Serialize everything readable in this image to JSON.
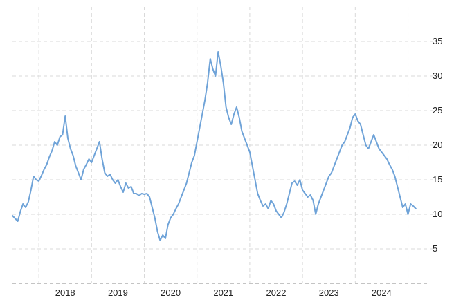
{
  "chart_data": {
    "type": "line",
    "title": "",
    "xlabel": "",
    "ylabel": "",
    "y_axis_side": "right",
    "ylim": [
      0,
      40
    ],
    "xlim": [
      2017.0,
      2024.9
    ],
    "grid": true,
    "legend": "none",
    "y_ticks": [
      {
        "value": 5,
        "label": "5"
      },
      {
        "value": 10,
        "label": "10"
      },
      {
        "value": 15,
        "label": "15"
      },
      {
        "value": 20,
        "label": "20"
      },
      {
        "value": 25,
        "label": "25"
      },
      {
        "value": 30,
        "label": "30"
      },
      {
        "value": 35,
        "label": "35"
      }
    ],
    "x_ticks": [
      {
        "label": "2018",
        "center": 2018.0
      },
      {
        "label": "2019",
        "center": 2019.0
      },
      {
        "label": "2020",
        "center": 2020.0
      },
      {
        "label": "2021",
        "center": 2021.0
      },
      {
        "label": "2022",
        "center": 2022.0
      },
      {
        "label": "2023",
        "center": 2023.0
      },
      {
        "label": "2024",
        "center": 2024.0
      }
    ],
    "x_gridlines": [
      2017.5,
      2018.5,
      2019.5,
      2020.5,
      2021.5,
      2022.5,
      2023.5,
      2024.5
    ],
    "series": [
      {
        "color": "#6fa3d8",
        "points": [
          [
            2017.0,
            9.8
          ],
          [
            2017.05,
            9.4
          ],
          [
            2017.1,
            9.0
          ],
          [
            2017.15,
            10.4
          ],
          [
            2017.2,
            11.5
          ],
          [
            2017.25,
            11.0
          ],
          [
            2017.3,
            11.8
          ],
          [
            2017.35,
            13.5
          ],
          [
            2017.4,
            15.5
          ],
          [
            2017.45,
            15.0
          ],
          [
            2017.5,
            14.8
          ],
          [
            2017.55,
            15.6
          ],
          [
            2017.6,
            16.5
          ],
          [
            2017.65,
            17.2
          ],
          [
            2017.7,
            18.3
          ],
          [
            2017.75,
            19.2
          ],
          [
            2017.8,
            20.5
          ],
          [
            2017.85,
            20.0
          ],
          [
            2017.9,
            21.2
          ],
          [
            2017.95,
            21.5
          ],
          [
            2018.0,
            24.2
          ],
          [
            2018.05,
            21.0
          ],
          [
            2018.1,
            19.5
          ],
          [
            2018.15,
            18.5
          ],
          [
            2018.2,
            17.0
          ],
          [
            2018.25,
            16.0
          ],
          [
            2018.3,
            15.0
          ],
          [
            2018.35,
            16.5
          ],
          [
            2018.4,
            17.2
          ],
          [
            2018.45,
            18.0
          ],
          [
            2018.5,
            17.5
          ],
          [
            2018.55,
            18.5
          ],
          [
            2018.6,
            19.5
          ],
          [
            2018.65,
            20.5
          ],
          [
            2018.7,
            18.0
          ],
          [
            2018.75,
            16.0
          ],
          [
            2018.8,
            15.5
          ],
          [
            2018.85,
            15.8
          ],
          [
            2018.9,
            15.0
          ],
          [
            2018.95,
            14.5
          ],
          [
            2019.0,
            15.0
          ],
          [
            2019.05,
            14.0
          ],
          [
            2019.1,
            13.2
          ],
          [
            2019.15,
            14.5
          ],
          [
            2019.2,
            13.8
          ],
          [
            2019.25,
            14.0
          ],
          [
            2019.3,
            13.0
          ],
          [
            2019.35,
            13.0
          ],
          [
            2019.4,
            12.7
          ],
          [
            2019.45,
            13.0
          ],
          [
            2019.5,
            12.9
          ],
          [
            2019.55,
            13.0
          ],
          [
            2019.6,
            12.5
          ],
          [
            2019.65,
            11.0
          ],
          [
            2019.7,
            9.5
          ],
          [
            2019.75,
            7.5
          ],
          [
            2019.8,
            6.2
          ],
          [
            2019.85,
            7.0
          ],
          [
            2019.9,
            6.5
          ],
          [
            2019.95,
            8.5
          ],
          [
            2020.0,
            9.5
          ],
          [
            2020.05,
            10.0
          ],
          [
            2020.1,
            10.8
          ],
          [
            2020.15,
            11.5
          ],
          [
            2020.2,
            12.5
          ],
          [
            2020.25,
            13.5
          ],
          [
            2020.3,
            14.5
          ],
          [
            2020.35,
            16.0
          ],
          [
            2020.4,
            17.5
          ],
          [
            2020.45,
            18.5
          ],
          [
            2020.5,
            20.5
          ],
          [
            2020.55,
            22.5
          ],
          [
            2020.6,
            24.5
          ],
          [
            2020.65,
            26.5
          ],
          [
            2020.7,
            29.0
          ],
          [
            2020.75,
            32.5
          ],
          [
            2020.8,
            31.0
          ],
          [
            2020.85,
            30.0
          ],
          [
            2020.9,
            33.5
          ],
          [
            2020.95,
            31.5
          ],
          [
            2021.0,
            29.0
          ],
          [
            2021.05,
            25.5
          ],
          [
            2021.1,
            24.0
          ],
          [
            2021.15,
            23.0
          ],
          [
            2021.2,
            24.5
          ],
          [
            2021.25,
            25.5
          ],
          [
            2021.3,
            24.0
          ],
          [
            2021.35,
            22.0
          ],
          [
            2021.4,
            21.0
          ],
          [
            2021.45,
            20.0
          ],
          [
            2021.5,
            19.0
          ],
          [
            2021.55,
            17.0
          ],
          [
            2021.6,
            15.0
          ],
          [
            2021.65,
            13.0
          ],
          [
            2021.7,
            12.0
          ],
          [
            2021.75,
            11.2
          ],
          [
            2021.8,
            11.5
          ],
          [
            2021.85,
            10.8
          ],
          [
            2021.9,
            12.0
          ],
          [
            2021.95,
            11.5
          ],
          [
            2022.0,
            10.5
          ],
          [
            2022.05,
            10.0
          ],
          [
            2022.1,
            9.5
          ],
          [
            2022.15,
            10.3
          ],
          [
            2022.2,
            11.5
          ],
          [
            2022.25,
            13.0
          ],
          [
            2022.3,
            14.5
          ],
          [
            2022.35,
            14.8
          ],
          [
            2022.4,
            14.2
          ],
          [
            2022.45,
            15.0
          ],
          [
            2022.5,
            13.5
          ],
          [
            2022.55,
            13.0
          ],
          [
            2022.6,
            12.5
          ],
          [
            2022.65,
            12.8
          ],
          [
            2022.7,
            12.0
          ],
          [
            2022.75,
            10.0
          ],
          [
            2022.8,
            11.5
          ],
          [
            2022.85,
            12.5
          ],
          [
            2022.9,
            13.5
          ],
          [
            2022.95,
            14.5
          ],
          [
            2023.0,
            15.5
          ],
          [
            2023.05,
            16.0
          ],
          [
            2023.1,
            17.0
          ],
          [
            2023.15,
            18.0
          ],
          [
            2023.2,
            19.0
          ],
          [
            2023.25,
            20.0
          ],
          [
            2023.3,
            20.5
          ],
          [
            2023.35,
            21.5
          ],
          [
            2023.4,
            22.5
          ],
          [
            2023.45,
            24.0
          ],
          [
            2023.5,
            24.5
          ],
          [
            2023.55,
            23.5
          ],
          [
            2023.6,
            23.0
          ],
          [
            2023.65,
            21.5
          ],
          [
            2023.7,
            20.0
          ],
          [
            2023.75,
            19.5
          ],
          [
            2023.8,
            20.5
          ],
          [
            2023.85,
            21.5
          ],
          [
            2023.9,
            20.5
          ],
          [
            2023.95,
            19.5
          ],
          [
            2024.0,
            19.0
          ],
          [
            2024.05,
            18.5
          ],
          [
            2024.1,
            18.0
          ],
          [
            2024.15,
            17.2
          ],
          [
            2024.2,
            16.5
          ],
          [
            2024.25,
            15.5
          ],
          [
            2024.3,
            14.0
          ],
          [
            2024.35,
            12.5
          ],
          [
            2024.4,
            11.0
          ],
          [
            2024.45,
            11.5
          ],
          [
            2024.5,
            10.0
          ],
          [
            2024.55,
            11.5
          ],
          [
            2024.6,
            11.2
          ],
          [
            2024.65,
            10.8
          ]
        ]
      }
    ]
  }
}
